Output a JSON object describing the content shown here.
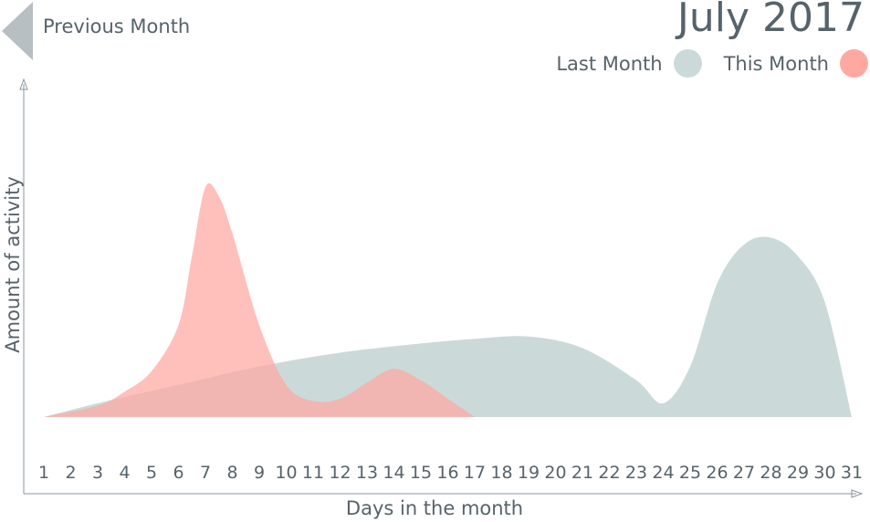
{
  "nav": {
    "previous_label": "Previous Month"
  },
  "chart_data": {
    "type": "area",
    "title": "July 2017",
    "xlabel": "Days in the month",
    "ylabel": "Amount of activity",
    "categories": [
      "1",
      "2",
      "3",
      "4",
      "5",
      "6",
      "7",
      "8",
      "9",
      "10",
      "11",
      "12",
      "13",
      "14",
      "15",
      "16",
      "17",
      "18",
      "19",
      "20",
      "21",
      "22",
      "23",
      "24",
      "25",
      "26",
      "27",
      "28",
      "29",
      "30",
      "31"
    ],
    "ylim": [
      0,
      100
    ],
    "legend_position": "top-right",
    "grid": false,
    "series": [
      {
        "name": "Last Month",
        "color": "#cbdad9",
        "x": [
          1,
          3,
          6,
          9,
          12,
          15,
          17,
          19,
          21,
          23,
          24,
          25,
          26,
          27,
          28,
          29,
          30,
          31
        ],
        "values": [
          0,
          6,
          14,
          22,
          28,
          32,
          34,
          35,
          30,
          16,
          6,
          22,
          58,
          75,
          78,
          70,
          50,
          0
        ]
      },
      {
        "name": "This Month",
        "color": "#ffa8a2",
        "x": [
          1,
          3,
          4,
          5,
          6,
          6.5,
          7,
          7.5,
          8,
          9,
          10,
          11,
          12,
          13,
          14,
          15,
          16,
          17
        ],
        "values": [
          0,
          5,
          11,
          20,
          40,
          70,
          100,
          96,
          80,
          40,
          14,
          7,
          8,
          15,
          21,
          16,
          8,
          0
        ]
      }
    ]
  }
}
